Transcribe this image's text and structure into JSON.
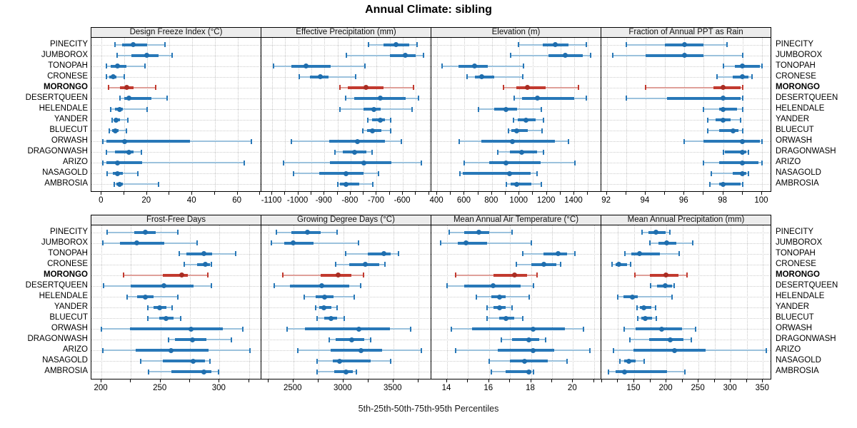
{
  "title": "Annual Climate: sibling",
  "caption": "5th-25th-50th-75th-95th Percentiles",
  "sites": [
    "PINECITY",
    "JUMBOROX",
    "TONOPAH",
    "CRONESE",
    "MORONGO",
    "DESERTQUEEN",
    "HELENDALE",
    "YANDER",
    "BLUECUT",
    "ORWASH",
    "DRAGONWASH",
    "ARIZO",
    "NASAGOLD",
    "AMBROSIA"
  ],
  "highlight_site": "MORONGO",
  "colors": {
    "blue": "#2878b8",
    "blue_light": "#9cc2dd",
    "blue_dot": "#1f6eae",
    "red": "#c23a2f",
    "red_light": "#dfa09a",
    "red_dot": "#a92d23",
    "strip_bg": "#ececec",
    "grid": "#c8c8c8"
  },
  "chart_data": [
    {
      "type": "dotplot-percentiles",
      "row": 0,
      "col": 0,
      "title": "Design Freeze Index (°C)",
      "domain": [
        -4.5,
        70.5
      ],
      "tick_labels": [
        0,
        20,
        40,
        60
      ],
      "grid": [
        0,
        70,
        10
      ],
      "percentiles": [
        5,
        25,
        50,
        75,
        95
      ],
      "values": [
        [
          6,
          9,
          14,
          20,
          28
        ],
        [
          7,
          13,
          20,
          25,
          31
        ],
        [
          2,
          4,
          7,
          11,
          19
        ],
        [
          2,
          3.5,
          5,
          6.5,
          10
        ],
        [
          3,
          8,
          11,
          14,
          24
        ],
        [
          8,
          10,
          12,
          22,
          29
        ],
        [
          4,
          6,
          8,
          9.5,
          20
        ],
        [
          4.5,
          5.5,
          6.5,
          8,
          11.5
        ],
        [
          3.5,
          4.5,
          6,
          7.5,
          11
        ],
        [
          0.5,
          2,
          10,
          39,
          66
        ],
        [
          2,
          6,
          12,
          14,
          17.5
        ],
        [
          0.5,
          2,
          7,
          18,
          63
        ],
        [
          2.5,
          5,
          7,
          9.5,
          16
        ],
        [
          5.5,
          6.5,
          8,
          9.5,
          25
        ]
      ]
    },
    {
      "type": "dotplot-percentiles",
      "row": 0,
      "col": 1,
      "title": "Effective Precipitation (mm)",
      "domain": [
        -1141,
        -491
      ],
      "tick_labels": [
        -1100,
        -1000,
        -900,
        -800,
        -700,
        -600
      ],
      "grid": [
        -1100,
        -500,
        50
      ],
      "percentiles": [
        5,
        25,
        50,
        75,
        95
      ],
      "values": [
        [
          -730,
          -675,
          -625,
          -575,
          -545
        ],
        [
          -815,
          -650,
          -590,
          -550,
          -520
        ],
        [
          -1095,
          -1025,
          -970,
          -875,
          -745
        ],
        [
          -995,
          -955,
          -915,
          -885,
          -780
        ],
        [
          -840,
          -810,
          -740,
          -675,
          -560
        ],
        [
          -820,
          -785,
          -685,
          -590,
          -540
        ],
        [
          -840,
          -750,
          -710,
          -685,
          -565
        ],
        [
          -735,
          -718,
          -686,
          -668,
          -647
        ],
        [
          -752,
          -736,
          -716,
          -682,
          -647
        ],
        [
          -1027,
          -882,
          -773,
          -668,
          -606
        ],
        [
          -860,
          -830,
          -785,
          -740,
          -718
        ],
        [
          -1055,
          -880,
          -750,
          -645,
          -530
        ],
        [
          -1018,
          -920,
          -818,
          -750,
          -693
        ],
        [
          -850,
          -840,
          -818,
          -768,
          -716
        ]
      ]
    },
    {
      "type": "dotplot-percentiles",
      "row": 0,
      "col": 2,
      "title": "Elevation (m)",
      "domain": [
        358,
        1598
      ],
      "tick_labels": [
        400,
        600,
        800,
        1000,
        1200,
        1400
      ],
      "grid": [
        400,
        1500,
        100
      ],
      "percentiles": [
        5,
        25,
        50,
        75,
        95
      ],
      "values": [
        [
          995,
          1170,
          1260,
          1360,
          1490
        ],
        [
          935,
          1215,
          1335,
          1460,
          1520
        ],
        [
          435,
          555,
          675,
          770,
          1030
        ],
        [
          620,
          675,
          725,
          815,
          1025
        ],
        [
          885,
          980,
          1060,
          1190,
          1430
        ],
        [
          960,
          1020,
          1130,
          1400,
          1490
        ],
        [
          700,
          815,
          900,
          985,
          1160
        ],
        [
          955,
          990,
          1050,
          1120,
          1175
        ],
        [
          920,
          940,
          980,
          1060,
          1165
        ],
        [
          560,
          725,
          950,
          1260,
          1360
        ],
        [
          840,
          930,
          1015,
          1130,
          1175
        ],
        [
          600,
          780,
          905,
          1155,
          1405
        ],
        [
          565,
          585,
          930,
          1080,
          1130
        ],
        [
          905,
          935,
          980,
          1085,
          1160
        ]
      ]
    },
    {
      "type": "dotplot-percentiles",
      "row": 0,
      "col": 3,
      "title": "Fraction of Annual PPT as Rain",
      "domain": [
        91.72,
        100.48
      ],
      "tick_labels": [
        92,
        94,
        96,
        98,
        100
      ],
      "grid": [
        92,
        100,
        1
      ],
      "percentiles": [
        5,
        25,
        50,
        75,
        95
      ],
      "values": [
        [
          93,
          95,
          96,
          97,
          98.2
        ],
        [
          92.3,
          94,
          96,
          97,
          99
        ],
        [
          98,
          98.6,
          99,
          99.9,
          100
        ],
        [
          97.7,
          98.5,
          99,
          99.3,
          99.5
        ],
        [
          94,
          97.5,
          98,
          98.9,
          99
        ],
        [
          93,
          95.1,
          98,
          98.9,
          99
        ],
        [
          97,
          97.8,
          98,
          98.7,
          99
        ],
        [
          97.2,
          97.6,
          98,
          98.4,
          98.9
        ],
        [
          97.2,
          97.8,
          98.5,
          98.8,
          99
        ],
        [
          96,
          97,
          99,
          99.9,
          100
        ],
        [
          98,
          98.1,
          99,
          99.2,
          99.3
        ],
        [
          97,
          97.8,
          99,
          99.8,
          100
        ],
        [
          97.4,
          98.5,
          99,
          99.2,
          99.3
        ],
        [
          97.3,
          97.8,
          98,
          98.9,
          99
        ]
      ]
    },
    {
      "type": "dotplot-percentiles",
      "row": 1,
      "col": 0,
      "title": "Frost-Free Days",
      "domain": [
        191.5,
        335.5
      ],
      "tick_labels": [
        200,
        250,
        300
      ],
      "grid": [
        200,
        325,
        25
      ],
      "percentiles": [
        5,
        25,
        50,
        75,
        95
      ],
      "values": [
        [
          205,
          228,
          237,
          246,
          265
        ],
        [
          201,
          216,
          230,
          253,
          281
        ],
        [
          266,
          272,
          287,
          294,
          314
        ],
        [
          270,
          281,
          288,
          292,
          293
        ],
        [
          219,
          252,
          268,
          273,
          290
        ],
        [
          202,
          225,
          253,
          278,
          293
        ],
        [
          222,
          230,
          237,
          244,
          265
        ],
        [
          239,
          244,
          249,
          255,
          260
        ],
        [
          239,
          249,
          255,
          261,
          267
        ],
        [
          200,
          224,
          276,
          303,
          320
        ],
        [
          257,
          262,
          277,
          289,
          310
        ],
        [
          201,
          229,
          259,
          291,
          326
        ],
        [
          233,
          252,
          278,
          288,
          292
        ],
        [
          240,
          259,
          287,
          293,
          299
        ]
      ]
    },
    {
      "type": "dotplot-percentiles",
      "row": 1,
      "col": 1,
      "title": "Growing Degree Days (°C)",
      "domain": [
        2180,
        3880
      ],
      "tick_labels": [
        2500,
        3000,
        3500
      ],
      "grid": [
        2250,
        3750,
        250
      ],
      "percentiles": [
        5,
        25,
        50,
        75,
        95
      ],
      "values": [
        [
          2330,
          2480,
          2640,
          2775,
          2940
        ],
        [
          2280,
          2405,
          2500,
          2700,
          3150
        ],
        [
          3025,
          3245,
          3405,
          3475,
          3550
        ],
        [
          2925,
          3055,
          3220,
          3355,
          3415
        ],
        [
          2395,
          2775,
          2950,
          3080,
          3200
        ],
        [
          2310,
          2465,
          2785,
          3060,
          3175
        ],
        [
          2605,
          2720,
          2810,
          2905,
          3105
        ],
        [
          2725,
          2760,
          2805,
          2880,
          2940
        ],
        [
          2735,
          2805,
          2875,
          2940,
          3010
        ],
        [
          2435,
          2615,
          3155,
          3465,
          3675
        ],
        [
          2855,
          2925,
          3080,
          3210,
          3270
        ],
        [
          2545,
          2875,
          3175,
          3390,
          3780
        ],
        [
          2740,
          2895,
          2965,
          3275,
          3475
        ],
        [
          2740,
          2905,
          3025,
          3095,
          3130
        ]
      ]
    },
    {
      "type": "dotplot-percentiles",
      "row": 1,
      "col": 2,
      "title": "Mean Annual Air Temperature (°C)",
      "domain": [
        13.25,
        21.35
      ],
      "tick_labels": [
        14,
        16,
        18,
        20
      ],
      "grid": [
        14,
        21,
        1
      ],
      "percentiles": [
        5,
        25,
        50,
        75,
        95
      ],
      "values": [
        [
          14.1,
          14.8,
          15.5,
          16.0,
          17.1
        ],
        [
          13.7,
          14.5,
          14.9,
          15.9,
          18.0
        ],
        [
          17.6,
          18.6,
          19.3,
          19.7,
          20.1
        ],
        [
          17.3,
          18.0,
          18.6,
          19.2,
          19.4
        ],
        [
          14.4,
          16.2,
          17.2,
          17.8,
          18.3
        ],
        [
          14.0,
          14.8,
          16.2,
          17.5,
          18.1
        ],
        [
          15.4,
          16.1,
          16.5,
          16.8,
          17.9
        ],
        [
          15.9,
          16.2,
          16.5,
          16.8,
          17.1
        ],
        [
          15.9,
          16.5,
          16.8,
          17.2,
          17.6
        ],
        [
          14.2,
          15.2,
          18.1,
          19.6,
          20.5
        ],
        [
          16.6,
          17.1,
          17.9,
          18.4,
          18.7
        ],
        [
          14.4,
          16.4,
          18.1,
          19.1,
          20.8
        ],
        [
          16.0,
          17.0,
          17.7,
          18.8,
          19.7
        ],
        [
          16.1,
          16.8,
          17.9,
          18.0,
          18.1
        ]
      ]
    },
    {
      "type": "dotplot-percentiles",
      "row": 1,
      "col": 3,
      "title": "Mean Annual Precipitation (mm)",
      "domain": [
        99,
        363
      ],
      "tick_labels": [
        150,
        200,
        250,
        300,
        350
      ],
      "grid": [
        100,
        350,
        25
      ],
      "percentiles": [
        5,
        25,
        50,
        75,
        95
      ],
      "values": [
        [
          162,
          172,
          184,
          199,
          205
        ],
        [
          174,
          188,
          200,
          215,
          241
        ],
        [
          136,
          146,
          158,
          190,
          220
        ],
        [
          116,
          121,
          126,
          139,
          144
        ],
        [
          151,
          174,
          199,
          219,
          232
        ],
        [
          175,
          185,
          198,
          209,
          212
        ],
        [
          124,
          133,
          147,
          156,
          209
        ],
        [
          154,
          159,
          165,
          177,
          183
        ],
        [
          156,
          161,
          167,
          178,
          184
        ],
        [
          135,
          152,
          193,
          224,
          245
        ],
        [
          143,
          173,
          206,
          227,
          239
        ],
        [
          118,
          149,
          213,
          261,
          355
        ],
        [
          128,
          135,
          142,
          152,
          165
        ],
        [
          110,
          121,
          135,
          201,
          229
        ]
      ]
    }
  ]
}
